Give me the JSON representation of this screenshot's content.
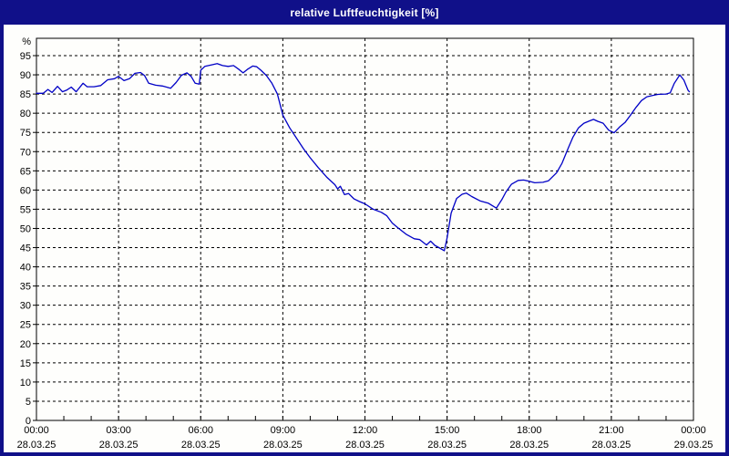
{
  "window": {
    "title": "relative Luftfeuchtigkeit [%]",
    "titlebar_bg": "#101089",
    "title_color": "#ffffff",
    "plot_bg": "#fefefc"
  },
  "chart_data": {
    "type": "line",
    "title": "relative Luftfeuchtigkeit [%]",
    "ylabel": "%",
    "y_unit_label": "%",
    "ylim": [
      0,
      99.5
    ],
    "y_ticks": [
      0,
      5,
      10,
      15,
      20,
      25,
      30,
      35,
      40,
      45,
      50,
      55,
      60,
      65,
      70,
      75,
      80,
      85,
      90,
      95
    ],
    "x_hours_range": [
      0,
      24
    ],
    "x_minor_tick_every_hours": 1,
    "x_grid_every_hours": 3,
    "grid_on": true,
    "grid_color": "#000000",
    "frame_color": "#000000",
    "line_color": "#0000c6",
    "x_labels": [
      {
        "hour": 0,
        "time": "00:00",
        "date": "28.03.25"
      },
      {
        "hour": 3,
        "time": "03:00",
        "date": "28.03.25"
      },
      {
        "hour": 6,
        "time": "06:00",
        "date": "28.03.25"
      },
      {
        "hour": 9,
        "time": "09:00",
        "date": "28.03.25"
      },
      {
        "hour": 12,
        "time": "12:00",
        "date": "28.03.25"
      },
      {
        "hour": 15,
        "time": "15:00",
        "date": "28.03.25"
      },
      {
        "hour": 18,
        "time": "18:00",
        "date": "28.03.25"
      },
      {
        "hour": 21,
        "time": "21:00",
        "date": "28.03.25"
      },
      {
        "hour": 24,
        "time": "00:00",
        "date": "29.03.25"
      }
    ],
    "series": [
      {
        "name": "relative Luftfeuchtigkeit [%]",
        "points": [
          [
            0.0,
            85.2
          ],
          [
            0.25,
            85.2
          ],
          [
            0.42,
            86.2
          ],
          [
            0.57,
            85.4
          ],
          [
            0.77,
            87.0
          ],
          [
            0.95,
            85.6
          ],
          [
            1.1,
            86.0
          ],
          [
            1.27,
            86.8
          ],
          [
            1.45,
            85.6
          ],
          [
            1.7,
            87.8
          ],
          [
            1.85,
            86.9
          ],
          [
            2.1,
            86.9
          ],
          [
            2.35,
            87.2
          ],
          [
            2.6,
            88.7
          ],
          [
            2.85,
            89.0
          ],
          [
            3.0,
            89.6
          ],
          [
            3.2,
            88.5
          ],
          [
            3.4,
            89.0
          ],
          [
            3.6,
            90.4
          ],
          [
            3.8,
            90.6
          ],
          [
            3.95,
            89.8
          ],
          [
            4.1,
            87.8
          ],
          [
            4.35,
            87.3
          ],
          [
            4.6,
            87.1
          ],
          [
            4.9,
            86.5
          ],
          [
            5.1,
            88.0
          ],
          [
            5.3,
            89.9
          ],
          [
            5.5,
            90.5
          ],
          [
            5.65,
            89.6
          ],
          [
            5.8,
            87.8
          ],
          [
            5.95,
            87.6
          ],
          [
            6.0,
            91.2
          ],
          [
            6.15,
            92.2
          ],
          [
            6.4,
            92.6
          ],
          [
            6.6,
            92.9
          ],
          [
            6.8,
            92.4
          ],
          [
            7.0,
            92.2
          ],
          [
            7.2,
            92.4
          ],
          [
            7.4,
            91.4
          ],
          [
            7.55,
            90.5
          ],
          [
            7.7,
            91.4
          ],
          [
            7.9,
            92.3
          ],
          [
            8.05,
            92.1
          ],
          [
            8.2,
            91.2
          ],
          [
            8.4,
            89.8
          ],
          [
            8.6,
            87.8
          ],
          [
            8.8,
            85.0
          ],
          [
            9.0,
            79.5
          ],
          [
            9.25,
            76.2
          ],
          [
            9.5,
            73.5
          ],
          [
            9.75,
            70.8
          ],
          [
            10.0,
            68.4
          ],
          [
            10.3,
            65.8
          ],
          [
            10.6,
            63.4
          ],
          [
            10.9,
            61.4
          ],
          [
            11.0,
            60.3
          ],
          [
            11.1,
            61.0
          ],
          [
            11.25,
            58.8
          ],
          [
            11.4,
            59.1
          ],
          [
            11.6,
            57.7
          ],
          [
            11.8,
            57.0
          ],
          [
            12.0,
            56.4
          ],
          [
            12.3,
            55.0
          ],
          [
            12.6,
            54.2
          ],
          [
            12.8,
            53.3
          ],
          [
            13.0,
            51.4
          ],
          [
            13.2,
            50.2
          ],
          [
            13.5,
            48.5
          ],
          [
            13.8,
            47.3
          ],
          [
            14.0,
            47.1
          ],
          [
            14.25,
            45.7
          ],
          [
            14.4,
            46.7
          ],
          [
            14.55,
            45.6
          ],
          [
            14.7,
            45.0
          ],
          [
            14.9,
            44.2
          ],
          [
            15.0,
            47.5
          ],
          [
            15.15,
            54.0
          ],
          [
            15.35,
            57.8
          ],
          [
            15.55,
            58.9
          ],
          [
            15.7,
            59.2
          ],
          [
            15.9,
            58.3
          ],
          [
            16.2,
            57.2
          ],
          [
            16.5,
            56.6
          ],
          [
            16.8,
            55.3
          ],
          [
            17.0,
            57.5
          ],
          [
            17.15,
            59.5
          ],
          [
            17.35,
            61.5
          ],
          [
            17.6,
            62.5
          ],
          [
            17.8,
            62.6
          ],
          [
            18.0,
            62.3
          ],
          [
            18.2,
            61.9
          ],
          [
            18.5,
            62.0
          ],
          [
            18.7,
            62.4
          ],
          [
            19.0,
            64.5
          ],
          [
            19.2,
            67.0
          ],
          [
            19.4,
            70.5
          ],
          [
            19.6,
            73.8
          ],
          [
            19.8,
            76.2
          ],
          [
            20.0,
            77.4
          ],
          [
            20.2,
            78.0
          ],
          [
            20.35,
            78.4
          ],
          [
            20.5,
            77.9
          ],
          [
            20.7,
            77.4
          ],
          [
            20.9,
            75.6
          ],
          [
            21.1,
            74.9
          ],
          [
            21.3,
            76.4
          ],
          [
            21.5,
            77.6
          ],
          [
            21.7,
            79.5
          ],
          [
            21.9,
            81.5
          ],
          [
            22.1,
            83.3
          ],
          [
            22.3,
            84.3
          ],
          [
            22.5,
            84.6
          ],
          [
            22.7,
            84.9
          ],
          [
            23.0,
            85.0
          ],
          [
            23.15,
            85.3
          ],
          [
            23.3,
            87.8
          ],
          [
            23.5,
            90.0
          ],
          [
            23.65,
            88.6
          ],
          [
            23.8,
            86.0
          ],
          [
            23.85,
            85.6
          ]
        ]
      }
    ]
  }
}
